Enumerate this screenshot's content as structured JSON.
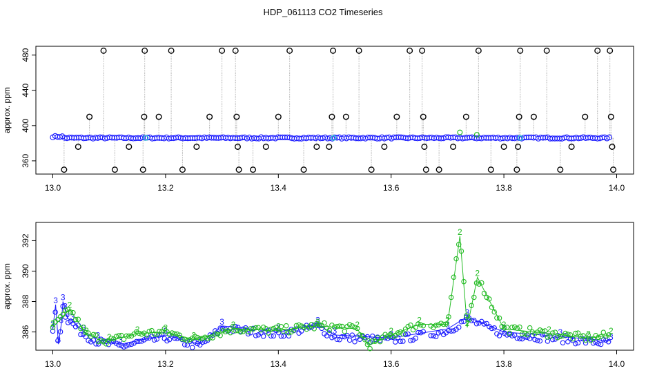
{
  "title": "HDP_061113  CO2 Timeseries",
  "colors": {
    "black": "#000000",
    "blue": "#1a1aff",
    "green": "#22bb22",
    "cyan": "#33cccc",
    "grey": "#999999"
  },
  "chart_data": [
    {
      "type": "scatter",
      "ylabel": "approx. ppm",
      "xlabel": "",
      "xlim": [
        13.0,
        14.0
      ],
      "ylim": [
        345,
        490
      ],
      "xticks": [
        "13.0",
        "13.2",
        "13.4",
        "13.6",
        "13.8",
        "14.0"
      ],
      "yticks": [
        "360",
        "400",
        "440",
        "480"
      ],
      "series": [
        {
          "color": "black",
          "points": [
            [
              13.02,
              350
            ],
            [
              13.045,
              376
            ],
            [
              13.065,
              410
            ],
            [
              13.09,
              485
            ],
            [
              13.11,
              350
            ],
            [
              13.135,
              376
            ],
            [
              13.16,
              350
            ],
            [
              13.162,
              410
            ],
            [
              13.163,
              485
            ],
            [
              13.188,
              410
            ],
            [
              13.21,
              485
            ],
            [
              13.23,
              350
            ],
            [
              13.255,
              376
            ],
            [
              13.278,
              410
            ],
            [
              13.3,
              485
            ],
            [
              13.324,
              485
            ],
            [
              13.326,
              410
            ],
            [
              13.328,
              376
            ],
            [
              13.33,
              350
            ],
            [
              13.355,
              350
            ],
            [
              13.378,
              376
            ],
            [
              13.4,
              410
            ],
            [
              13.42,
              485
            ],
            [
              13.445,
              350
            ],
            [
              13.468,
              376
            ],
            [
              13.49,
              376
            ],
            [
              13.495,
              410
            ],
            [
              13.497,
              485
            ],
            [
              13.52,
              410
            ],
            [
              13.543,
              485
            ],
            [
              13.565,
              350
            ],
            [
              13.588,
              376
            ],
            [
              13.61,
              410
            ],
            [
              13.633,
              485
            ],
            [
              13.655,
              485
            ],
            [
              13.657,
              410
            ],
            [
              13.659,
              376
            ],
            [
              13.662,
              350
            ],
            [
              13.685,
              350
            ],
            [
              13.71,
              376
            ],
            [
              13.733,
              410
            ],
            [
              13.755,
              485
            ],
            [
              13.777,
              350
            ],
            [
              13.8,
              376
            ],
            [
              13.823,
              350
            ],
            [
              13.825,
              376
            ],
            [
              13.827,
              410
            ],
            [
              13.829,
              485
            ],
            [
              13.853,
              410
            ],
            [
              13.876,
              485
            ],
            [
              13.9,
              350
            ],
            [
              13.92,
              376
            ],
            [
              13.944,
              410
            ],
            [
              13.966,
              485
            ],
            [
              13.988,
              485
            ],
            [
              13.99,
              410
            ],
            [
              13.992,
              376
            ],
            [
              13.994,
              350
            ]
          ]
        },
        {
          "color": "blue",
          "description_level": 386,
          "xrange": [
            13.0,
            13.99
          ]
        },
        {
          "color": "green",
          "points": [
            [
              13.722,
              392.3
            ],
            [
              13.752,
              389.6
            ]
          ]
        },
        {
          "color": "cyan",
          "points": [
            [
              13.165,
              386
            ],
            [
              13.498,
              386
            ],
            [
              13.829,
              386
            ]
          ]
        }
      ]
    },
    {
      "type": "scatter",
      "ylabel": "approx. ppm",
      "xlabel": "",
      "xlim": [
        13.0,
        14.0
      ],
      "ylim": [
        384.8,
        393.2
      ],
      "xticks": [
        "13.0",
        "13.2",
        "13.4",
        "13.6",
        "13.8",
        "14.0"
      ],
      "yticks": [
        "386",
        "388",
        "390",
        "392"
      ],
      "series": [
        {
          "marker": "3",
          "color": "blue",
          "points": [
            [
              13.0,
              386.2
            ],
            [
              13.005,
              387.8
            ],
            [
              13.01,
              385.2
            ],
            [
              13.015,
              386.5
            ],
            [
              13.018,
              388.0
            ],
            [
              13.022,
              387.4
            ],
            [
              13.026,
              386.9
            ],
            [
              13.035,
              386.7
            ],
            [
              13.055,
              386.0
            ],
            [
              13.08,
              385.5
            ],
            [
              13.12,
              385.2
            ],
            [
              13.2,
              385.8
            ],
            [
              13.26,
              385.2
            ],
            [
              13.3,
              386.4
            ],
            [
              13.4,
              386.0
            ],
            [
              13.47,
              386.5
            ],
            [
              13.5,
              385.8
            ],
            [
              13.6,
              385.6
            ],
            [
              13.7,
              386.2
            ],
            [
              13.735,
              387.0
            ],
            [
              13.8,
              386.0
            ],
            [
              13.9,
              385.7
            ],
            [
              13.99,
              385.4
            ]
          ]
        },
        {
          "marker": "2",
          "color": "green",
          "points": [
            [
              13.0,
              386.3
            ],
            [
              13.03,
              387.5
            ],
            [
              13.06,
              385.8
            ],
            [
              13.1,
              385.4
            ],
            [
              13.15,
              385.9
            ],
            [
              13.2,
              386.0
            ],
            [
              13.25,
              385.5
            ],
            [
              13.32,
              386.2
            ],
            [
              13.4,
              386.1
            ],
            [
              13.47,
              386.4
            ],
            [
              13.54,
              386.2
            ],
            [
              13.56,
              385.1
            ],
            [
              13.6,
              385.8
            ],
            [
              13.65,
              386.5
            ],
            [
              13.7,
              386.5
            ],
            [
              13.722,
              392.3
            ],
            [
              13.735,
              386.3
            ],
            [
              13.753,
              389.6
            ],
            [
              13.8,
              386.2
            ],
            [
              13.88,
              385.9
            ],
            [
              13.95,
              385.6
            ],
            [
              13.99,
              385.8
            ]
          ]
        }
      ]
    }
  ]
}
